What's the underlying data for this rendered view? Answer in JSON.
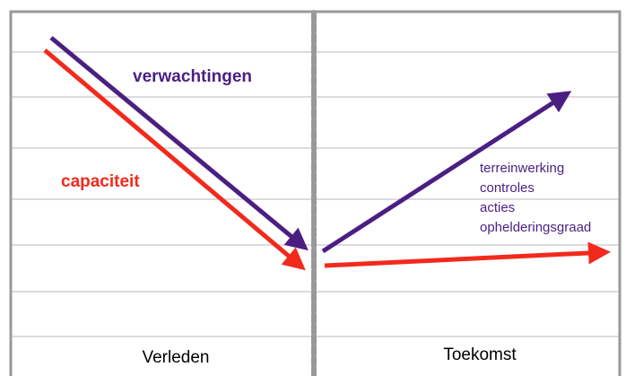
{
  "series_labels": {
    "expectations": "verwachtingen",
    "capacity": "capaciteit"
  },
  "factors": [
    "terreinwerking",
    "controles",
    "acties",
    "ophelderingsgraad"
  ],
  "periods": {
    "past": "Verleden",
    "future": "Toekomst"
  }
}
